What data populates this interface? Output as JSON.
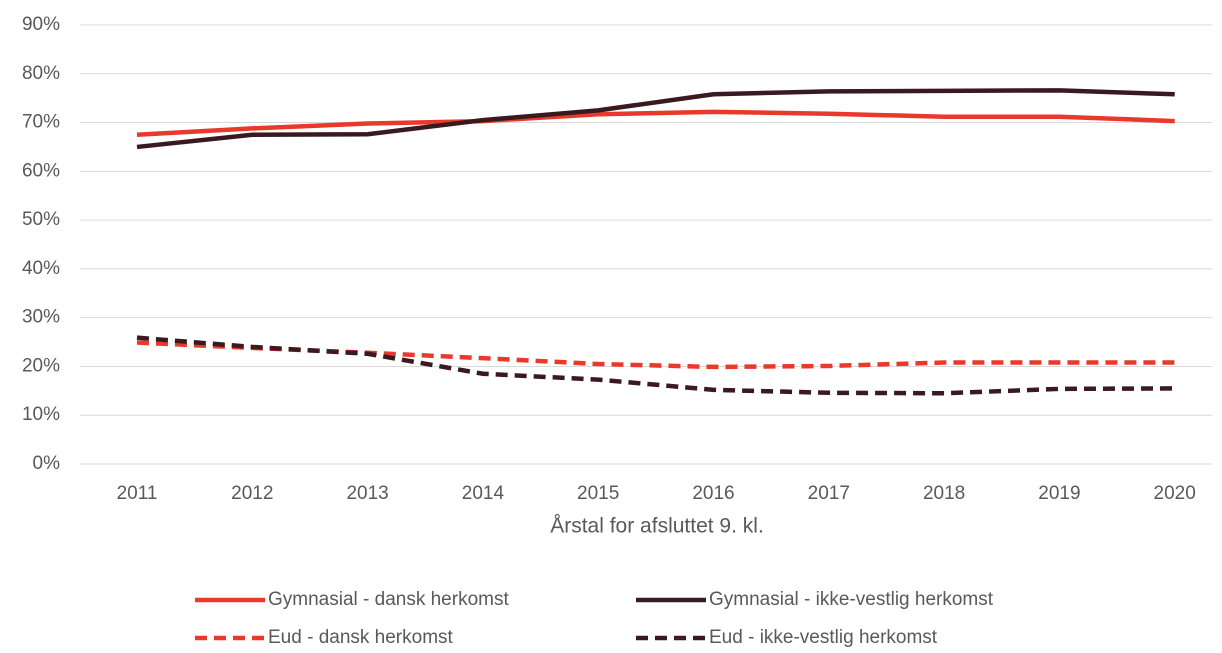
{
  "chart_data": {
    "type": "line",
    "x_label": "Årstal for afsluttet 9. kl.",
    "categories": [
      "2011",
      "2012",
      "2013",
      "2014",
      "2015",
      "2016",
      "2017",
      "2018",
      "2019",
      "2020"
    ],
    "series": [
      {
        "name": "Gymnasial - dansk herkomst",
        "color": "#e8392b",
        "dashed": false,
        "values": [
          67.5,
          68.8,
          69.8,
          70.3,
          71.7,
          72.2,
          71.8,
          71.2,
          71.2,
          70.3
        ]
      },
      {
        "name": "Gymnasial - ikke-vestlig herkomst",
        "color": "#3a1a20",
        "dashed": false,
        "values": [
          65.0,
          67.5,
          67.6,
          70.5,
          72.5,
          75.8,
          76.4,
          76.5,
          76.6,
          75.8
        ]
      },
      {
        "name": "Eud - dansk herkomst",
        "color": "#e8392b",
        "dashed": true,
        "values": [
          24.9,
          23.8,
          22.8,
          21.7,
          20.5,
          19.9,
          20.1,
          20.8,
          20.8,
          20.8
        ]
      },
      {
        "name": "Eud - ikke-vestlig herkomst",
        "color": "#3a1a20",
        "dashed": true,
        "values": [
          25.9,
          24.0,
          22.6,
          18.5,
          17.3,
          15.2,
          14.6,
          14.5,
          15.4,
          15.5
        ]
      }
    ],
    "ylim": [
      0,
      90
    ],
    "yticks": [
      {
        "value": 0,
        "label": "0%"
      },
      {
        "value": 10,
        "label": "10%"
      },
      {
        "value": 20,
        "label": "20%"
      },
      {
        "value": 30,
        "label": "30%"
      },
      {
        "value": 40,
        "label": "40%"
      },
      {
        "value": 50,
        "label": "50%"
      },
      {
        "value": 60,
        "label": "60%"
      },
      {
        "value": 70,
        "label": "70%"
      },
      {
        "value": 80,
        "label": "80%"
      },
      {
        "value": 90,
        "label": "90%"
      }
    ],
    "grid": true,
    "legend": "bottom"
  }
}
